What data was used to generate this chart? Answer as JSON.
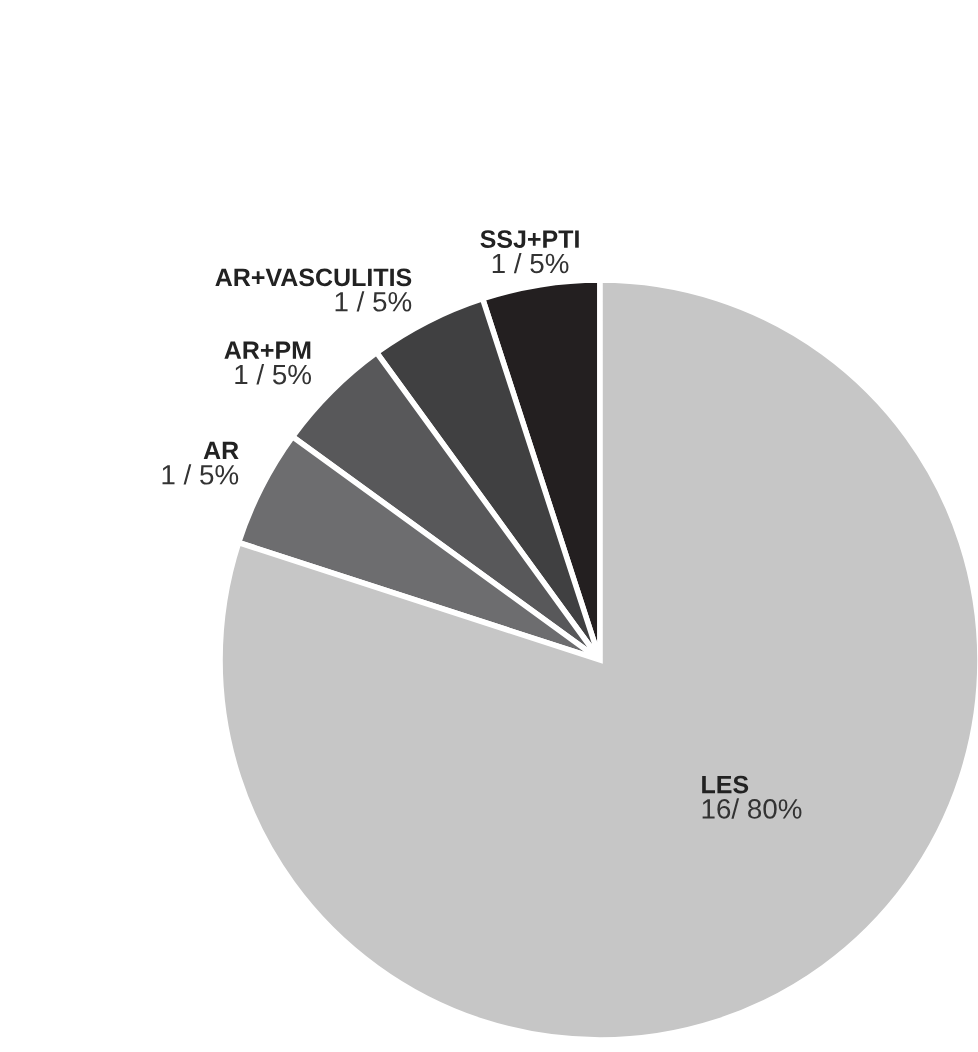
{
  "chart_data": {
    "type": "pie",
    "categories": [
      "SSJ+PTI",
      "AR+VASCULITIS",
      "AR+PM",
      "AR",
      "LES"
    ],
    "values": [
      1,
      1,
      1,
      1,
      16
    ],
    "value_labels": [
      "1 / 5%",
      "1 / 5%",
      "1 / 5%",
      "1 / 5%",
      "16/ 80%"
    ],
    "colors": [
      "#231f20",
      "#404041",
      "#58585a",
      "#6d6d6f",
      "#c6c6c6"
    ]
  }
}
